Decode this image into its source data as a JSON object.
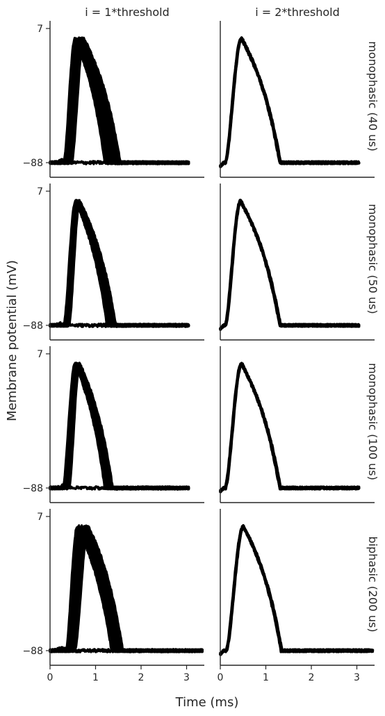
{
  "chart_data": {
    "type": "line",
    "xlabel": "Time (ms)",
    "ylabel": "Membrane potential (mV)",
    "xlim": [
      0,
      3.35
    ],
    "ylim": [
      -94,
      10
    ],
    "x_ticks": [
      0,
      1,
      2,
      3
    ],
    "y_ticks": [
      7,
      -88
    ],
    "y_tick_labels": [
      "7",
      "−88"
    ],
    "columns": [
      "i = 1*threshold",
      "i = 2*threshold"
    ],
    "rows": [
      "monophasic (40 us)",
      "monophasic (50 us)",
      "monophasic (100 us)",
      "biphasic (200 us)"
    ],
    "resting_potential": -88,
    "peak_potential": 0,
    "panels": [
      {
        "row": 0,
        "col": 0,
        "trace_end": 3.05,
        "onset_min": 0.3,
        "onset_max": 0.48,
        "peak_min": 0.55,
        "peak_max": 0.75,
        "decay_end_min": 1.2,
        "decay_end_max": 1.55,
        "includes_subthreshold": true
      },
      {
        "row": 0,
        "col": 1,
        "trace_end": 3.05,
        "onset_min": 0.1,
        "onset_max": 0.12,
        "peak_min": 0.46,
        "peak_max": 0.48,
        "decay_end_min": 1.3,
        "decay_end_max": 1.33,
        "includes_subthreshold": false
      },
      {
        "row": 1,
        "col": 0,
        "trace_end": 3.05,
        "onset_min": 0.3,
        "onset_max": 0.42,
        "peak_min": 0.56,
        "peak_max": 0.66,
        "decay_end_min": 1.25,
        "decay_end_max": 1.45,
        "includes_subthreshold": true
      },
      {
        "row": 1,
        "col": 1,
        "trace_end": 3.05,
        "onset_min": 0.1,
        "onset_max": 0.12,
        "peak_min": 0.44,
        "peak_max": 0.46,
        "decay_end_min": 1.3,
        "decay_end_max": 1.33,
        "includes_subthreshold": false
      },
      {
        "row": 2,
        "col": 0,
        "trace_end": 3.05,
        "onset_min": 0.28,
        "onset_max": 0.42,
        "peak_min": 0.55,
        "peak_max": 0.66,
        "decay_end_min": 1.2,
        "decay_end_max": 1.38,
        "includes_subthreshold": true
      },
      {
        "row": 2,
        "col": 1,
        "trace_end": 3.05,
        "onset_min": 0.1,
        "onset_max": 0.12,
        "peak_min": 0.46,
        "peak_max": 0.48,
        "decay_end_min": 1.3,
        "decay_end_max": 1.33,
        "includes_subthreshold": false
      },
      {
        "row": 3,
        "col": 0,
        "trace_end": 3.35,
        "onset_min": 0.35,
        "onset_max": 0.55,
        "peak_min": 0.6,
        "peak_max": 0.85,
        "decay_end_min": 1.35,
        "decay_end_max": 1.6,
        "includes_subthreshold": true
      },
      {
        "row": 3,
        "col": 1,
        "trace_end": 3.35,
        "onset_min": 0.12,
        "onset_max": 0.14,
        "peak_min": 0.5,
        "peak_max": 0.52,
        "decay_end_min": 1.33,
        "decay_end_max": 1.36,
        "includes_subthreshold": false
      }
    ],
    "grid": false,
    "legend": "none"
  }
}
